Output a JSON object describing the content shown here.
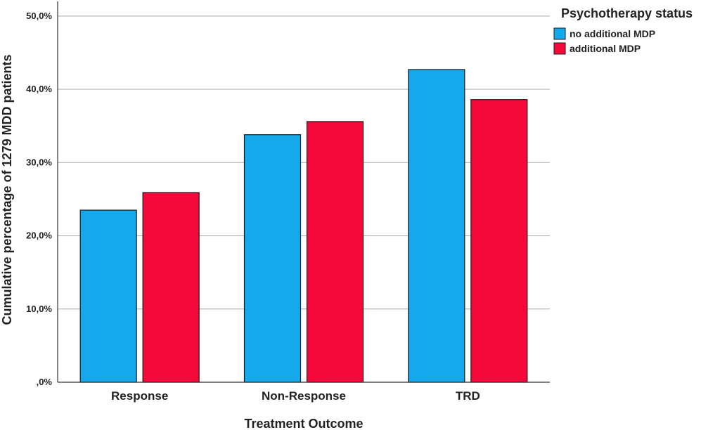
{
  "chart_data": {
    "type": "bar",
    "title": "",
    "xlabel": "Treatment Outcome",
    "ylabel": "Cumulative percentage of 1279 MDD patients",
    "categories": [
      "Response",
      "Non-Response",
      "TRD"
    ],
    "series": [
      {
        "name": "no additional MDP",
        "values": [
          23.5,
          33.8,
          42.7
        ],
        "color": "#15a8ea"
      },
      {
        "name": "additional MDP",
        "values": [
          25.9,
          35.6,
          38.6
        ],
        "color": "#f5093a"
      }
    ],
    "ylim": [
      0,
      52
    ],
    "yticks": [
      0,
      10,
      20,
      30,
      40,
      50
    ],
    "ytick_labels": [
      ",0%",
      "10,0%",
      "20,0%",
      "30,0%",
      "40,0%",
      "50,0%"
    ],
    "grid": true,
    "legend": {
      "title": "Psychotherapy status",
      "position": "top-right"
    }
  }
}
